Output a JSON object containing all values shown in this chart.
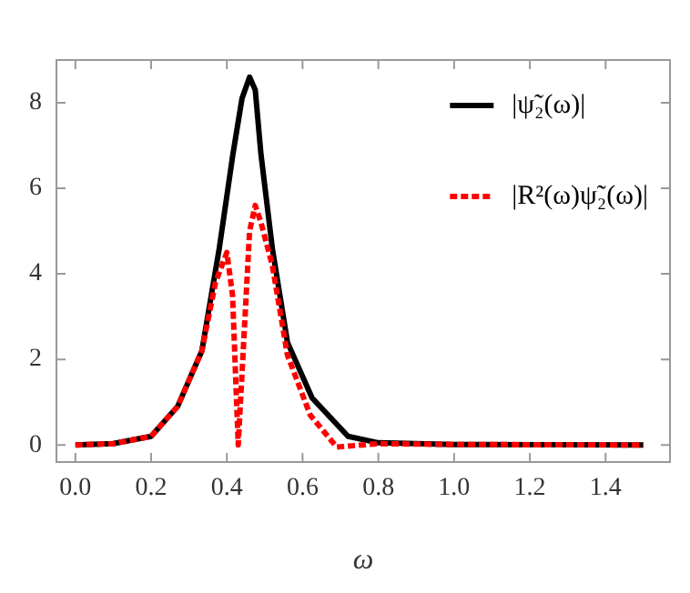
{
  "chart_data": {
    "type": "line",
    "xlabel": "ω",
    "xlim": [
      -0.05,
      1.57
    ],
    "ylim": [
      -0.4,
      9
    ],
    "xticks": [
      {
        "value": 0,
        "label": "0.0"
      },
      {
        "value": 0.2,
        "label": "0.2"
      },
      {
        "value": 0.4,
        "label": "0.4"
      },
      {
        "value": 0.6,
        "label": "0.6"
      },
      {
        "value": 0.8,
        "label": "0.8"
      },
      {
        "value": 1,
        "label": "1.0"
      },
      {
        "value": 1.2,
        "label": "1.2"
      },
      {
        "value": 1.4,
        "label": "1.4"
      }
    ],
    "yticks": [
      0,
      2,
      4,
      6,
      8
    ],
    "grid": false,
    "legend": "top right",
    "marker": "none",
    "series": [
      {
        "name": "|ψ̃₂(ω)|",
        "color": "#000000",
        "line_style": "solid",
        "x": [
          0,
          0.1,
          0.2,
          0.27,
          0.334,
          0.38,
          0.416,
          0.44,
          0.46,
          0.475,
          0.49,
          0.52,
          0.56,
          0.625,
          0.72,
          0.8,
          1.0,
          1.5
        ],
        "values": [
          0,
          0.03,
          0.2,
          0.9,
          2.2,
          4.6,
          6.8,
          8.1,
          8.6,
          8.3,
          6.8,
          4.6,
          2.4,
          1.1,
          0.2,
          0.05,
          0.01,
          0
        ]
      },
      {
        "name": "|R²(ω)ψ̃₂(ω)|",
        "color": "#ff0000",
        "line_style": "dashed",
        "x": [
          0,
          0.1,
          0.2,
          0.27,
          0.334,
          0.37,
          0.4,
          0.415,
          0.43,
          0.445,
          0.46,
          0.475,
          0.49,
          0.52,
          0.56,
          0.62,
          0.69,
          0.8,
          1.0,
          1.5
        ],
        "values": [
          0,
          0.03,
          0.2,
          0.9,
          2.2,
          3.8,
          4.5,
          3.5,
          0,
          2.5,
          5.0,
          5.6,
          5.2,
          4.2,
          2.1,
          0.7,
          -0.05,
          0.03,
          0.01,
          0
        ]
      }
    ]
  }
}
